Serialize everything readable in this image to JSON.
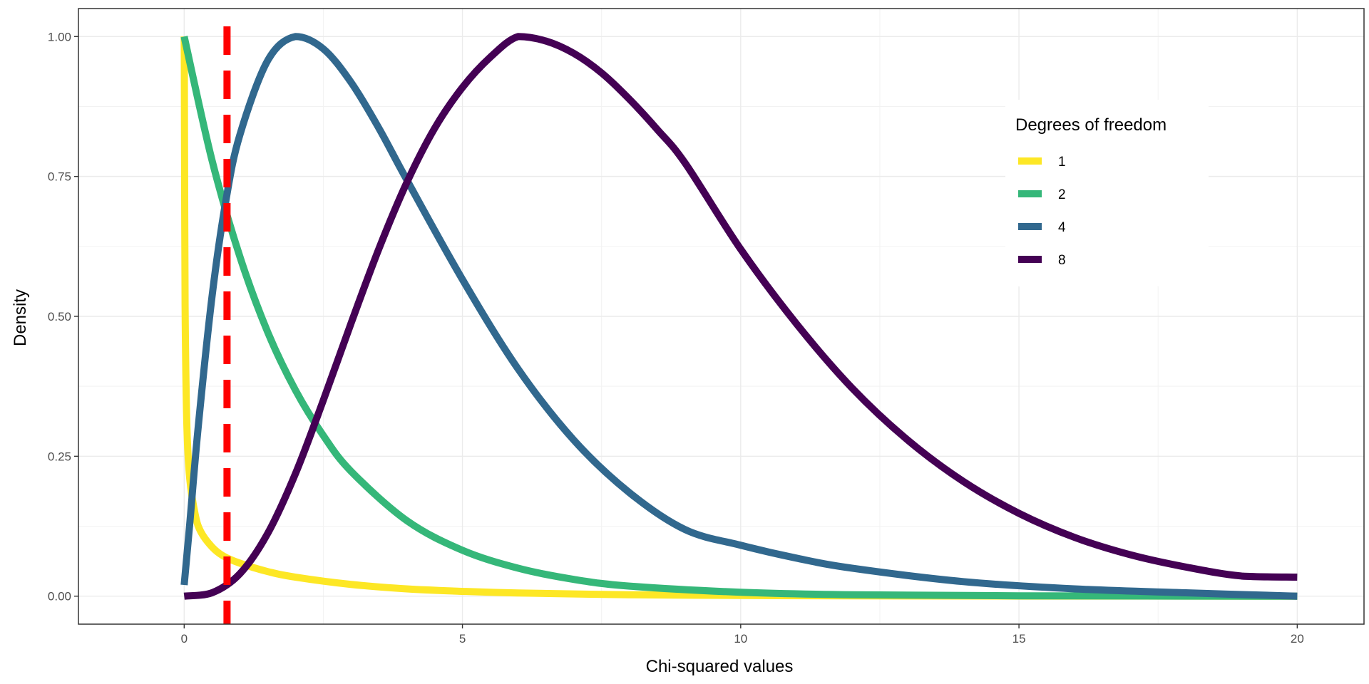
{
  "chart_data": {
    "type": "line",
    "title": "",
    "xlabel": "Chi-squared values",
    "ylabel": "Density",
    "xlim": [
      -1.9,
      21.2
    ],
    "ylim": [
      -0.05,
      1.05
    ],
    "x_ticks": [
      0,
      5,
      10,
      15,
      20
    ],
    "x_tick_labels": [
      "0",
      "5",
      "10",
      "15",
      "20"
    ],
    "y_ticks": [
      0,
      0.25,
      0.5,
      0.75,
      1
    ],
    "y_tick_labels": [
      "0.00",
      "0.25",
      "0.50",
      "0.75",
      "1.00"
    ],
    "grid": true,
    "legend": {
      "title": "Degrees of freedom",
      "position": "top-right"
    },
    "vline": {
      "x": 0.77,
      "color": "#FF0000",
      "style": "dashed"
    },
    "series": [
      {
        "name": "1",
        "color": "#FDE725",
        "x": [
          0.0005,
          0.003,
          0.01,
          0.02,
          0.05,
          0.1,
          0.2,
          0.3,
          0.5,
          0.7,
          1,
          1.5,
          2,
          3,
          4,
          5,
          6,
          8,
          10,
          12,
          15,
          20
        ],
        "y": [
          1.0,
          0.95,
          0.68,
          0.48,
          0.3,
          0.21,
          0.145,
          0.115,
          0.088,
          0.072,
          0.059,
          0.044,
          0.034,
          0.021,
          0.013,
          0.0086,
          0.0057,
          0.0026,
          0.0012,
          0.0006,
          0.0002,
          0.0
        ]
      },
      {
        "name": "2",
        "color": "#35B779",
        "x": [
          0,
          0.5,
          1,
          1.5,
          2,
          2.5,
          3,
          4,
          5,
          6,
          7,
          8,
          10,
          12,
          15,
          20
        ],
        "y": [
          1.0,
          0.779,
          0.607,
          0.472,
          0.368,
          0.287,
          0.223,
          0.135,
          0.082,
          0.05,
          0.03,
          0.018,
          0.007,
          0.0025,
          0.0006,
          0.0
        ]
      },
      {
        "name": "4",
        "color": "#31688E",
        "x": [
          0,
          0.1,
          0.25,
          0.5,
          0.75,
          1,
          1.5,
          2,
          2.5,
          3,
          3.5,
          4,
          5,
          6,
          7,
          8,
          9,
          10,
          11,
          12,
          14,
          16,
          18,
          20
        ],
        "y": [
          0.02,
          0.129,
          0.3,
          0.535,
          0.707,
          0.824,
          0.957,
          1.0,
          0.978,
          0.918,
          0.836,
          0.744,
          0.566,
          0.406,
          0.279,
          0.185,
          0.119,
          0.091,
          0.068,
          0.05,
          0.026,
          0.013,
          0.006,
          0.0
        ]
      },
      {
        "name": "8",
        "color": "#440154",
        "x": [
          0,
          0.5,
          1,
          1.5,
          2,
          2.5,
          3,
          3.5,
          4,
          4.5,
          5,
          5.5,
          6,
          6.5,
          7,
          7.5,
          8,
          8.5,
          9,
          10,
          11,
          12,
          13,
          14,
          15,
          16,
          17,
          18,
          19,
          20
        ],
        "y": [
          0.0,
          0.006,
          0.04,
          0.112,
          0.219,
          0.35,
          0.488,
          0.621,
          0.739,
          0.836,
          0.909,
          0.963,
          1.0,
          0.992,
          0.97,
          0.935,
          0.888,
          0.834,
          0.774,
          0.62,
          0.487,
          0.372,
          0.279,
          0.205,
          0.148,
          0.105,
          0.074,
          0.052,
          0.036,
          0.034
        ]
      }
    ]
  }
}
